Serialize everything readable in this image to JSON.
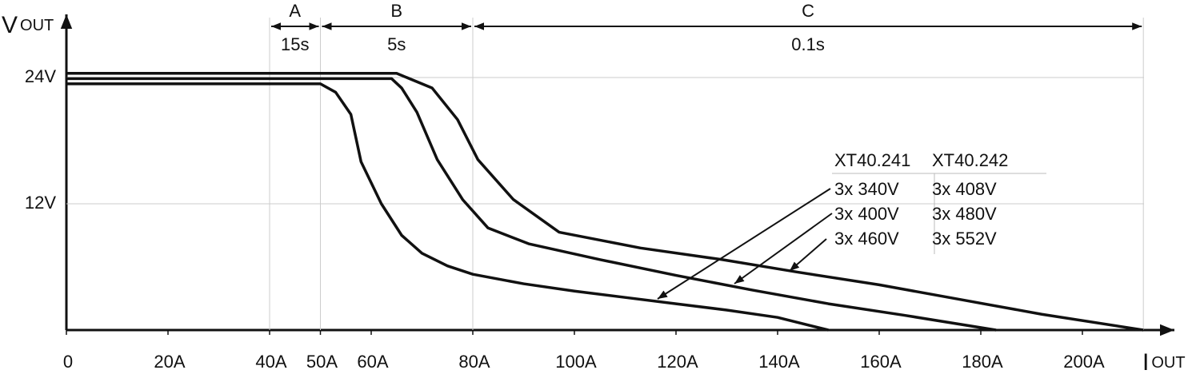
{
  "chart_data": {
    "type": "line",
    "x_label": {
      "main": "I",
      "sub": "OUT"
    },
    "y_label": {
      "main": "V",
      "sub": "OUT"
    },
    "xlim": [
      0,
      220
    ],
    "ylim": [
      0,
      30
    ],
    "xticks": [
      0,
      {
        "value": 20,
        "label": "20A"
      },
      {
        "value": 40,
        "label": "40A"
      },
      {
        "value": 50,
        "label": "50A"
      },
      {
        "value": 60,
        "label": "60A"
      },
      {
        "value": 80,
        "label": "80A"
      },
      {
        "value": 100,
        "label": "100A"
      },
      {
        "value": 120,
        "label": "120A"
      },
      {
        "value": 140,
        "label": "140A"
      },
      {
        "value": 160,
        "label": "160A"
      },
      {
        "value": 180,
        "label": "180A"
      },
      {
        "value": 200,
        "label": "200A"
      }
    ],
    "yticks": [
      {
        "value": 12,
        "label": "12V"
      },
      {
        "value": 24,
        "label": "24V"
      }
    ],
    "grid": true,
    "regions": [
      {
        "label": "A",
        "duration": "15s",
        "from": 40,
        "to": 50
      },
      {
        "label": "B",
        "duration": "5s",
        "from": 50,
        "to": 80
      },
      {
        "label": "C",
        "duration": "0.1s",
        "from": 80,
        "to": 212
      }
    ],
    "series": [
      {
        "color": "#111111",
        "x": [
          0,
          50,
          53,
          56,
          58,
          62,
          66,
          70,
          75,
          80,
          90,
          100,
          110,
          120,
          130,
          140,
          150
        ],
        "values": [
          23.4,
          23.4,
          22.6,
          20.5,
          16,
          12,
          9,
          7.3,
          6.1,
          5.3,
          4.4,
          3.7,
          3.1,
          2.5,
          1.9,
          1.2,
          0
        ]
      },
      {
        "color": "#111111",
        "x": [
          0,
          64,
          66,
          69,
          73,
          78,
          83,
          91,
          105,
          120,
          135,
          150,
          165,
          183
        ],
        "values": [
          23.9,
          23.9,
          23,
          20.7,
          16.2,
          12.4,
          9.7,
          8.2,
          6.7,
          5.2,
          3.8,
          2.5,
          1.4,
          0
        ]
      },
      {
        "color": "#111111",
        "x": [
          0,
          65,
          72,
          77,
          81,
          88,
          97,
          113,
          129,
          144,
          160,
          176,
          192,
          212
        ],
        "values": [
          24.4,
          24.4,
          23,
          20,
          16.2,
          12.4,
          9.3,
          7.8,
          6.7,
          5.5,
          4.3,
          2.9,
          1.5,
          0
        ]
      }
    ],
    "legend_table": {
      "headers": [
        "XT40.241",
        "XT40.242"
      ],
      "rows": [
        [
          "3x 340V",
          "3x 408V"
        ],
        [
          "3x 400V",
          "3x 480V"
        ],
        [
          "3x 460V",
          "3x 552V"
        ]
      ]
    }
  }
}
